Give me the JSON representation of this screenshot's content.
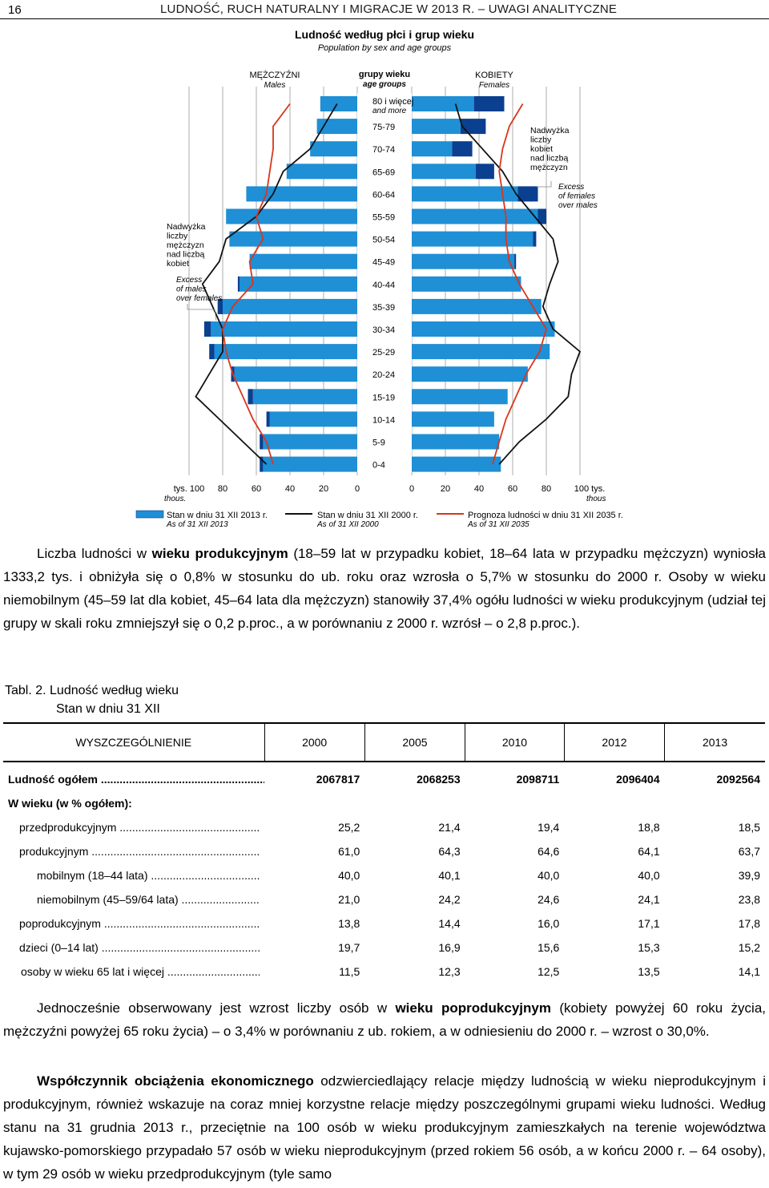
{
  "header": {
    "page_number": "16",
    "running_title": "LUDNOŚĆ, RUCH NATURALNY I MIGRACJE W 2013 R. – UWAGI ANALITYCZNE"
  },
  "chart_data": {
    "type": "population-pyramid",
    "title": "Ludność według płci i grup wieku",
    "subtitle": "Population by sex and age groups",
    "males_label": "MĘŻCZYŹNI",
    "males_label_en": "Males",
    "females_label": "KOBIETY",
    "females_label_en": "Females",
    "age_axis_title": "grupy wieku",
    "age_axis_title_en": "age groups",
    "age_groups": [
      "80 i więcej",
      "75-79",
      "70-74",
      "65-69",
      "60-64",
      "55-59",
      "50-54",
      "45-49",
      "40-44",
      "35-39",
      "30-34",
      "25-29",
      "20-24",
      "15-19",
      "10-14",
      "5-9",
      "0-4"
    ],
    "age_group_80_en": "and more",
    "x_ticks_left": [
      "tys. 100",
      "80",
      "60",
      "40",
      "20",
      "0"
    ],
    "x_ticks_right": [
      "0",
      "20",
      "40",
      "60",
      "80",
      "100 tys."
    ],
    "x_unit_en_left": "thous.",
    "x_unit_en_right": "thous",
    "xlim": [
      0,
      100
    ],
    "males_2013": [
      22,
      24,
      28,
      42,
      66,
      78,
      76,
      64,
      70,
      80,
      87,
      85,
      73,
      62,
      52,
      56,
      56
    ],
    "females_2013": [
      37,
      29,
      24,
      38,
      63,
      75,
      72,
      61,
      65,
      77,
      85,
      82,
      69,
      57,
      49,
      52,
      53
    ],
    "excess_males": [
      0,
      0,
      0,
      0,
      0,
      0,
      0,
      0,
      1,
      3,
      4,
      3,
      2,
      3,
      2,
      2,
      2
    ],
    "excess_females": [
      18,
      15,
      12,
      11,
      12,
      5,
      2,
      1,
      0,
      0,
      0,
      0,
      0,
      0,
      0,
      0,
      0
    ],
    "males_2000": [
      12,
      20,
      28,
      44,
      50,
      60,
      78,
      82,
      92,
      86,
      80,
      80,
      88,
      96,
      82,
      68,
      54
    ],
    "females_2000": [
      26,
      30,
      42,
      54,
      62,
      73,
      84,
      87,
      82,
      78,
      84,
      100,
      95,
      93,
      80,
      64,
      52
    ],
    "males_2035": [
      40,
      50,
      50,
      52,
      54,
      60,
      56,
      64,
      62,
      74,
      80,
      78,
      74,
      68,
      62,
      54,
      50
    ],
    "females_2035": [
      66,
      58,
      54,
      52,
      54,
      56,
      56,
      58,
      64,
      72,
      80,
      76,
      68,
      62,
      56,
      52,
      48
    ],
    "note_excess_males": [
      "Nadwyżka",
      "liczby",
      "mężczyzn",
      "nad liczbą",
      "kobiet"
    ],
    "note_excess_males_en": [
      "Excess",
      "of males",
      "over females"
    ],
    "note_excess_females": [
      "Nadwyżka",
      "liczby",
      "kobiet",
      "nad liczbą",
      "mężczyzn"
    ],
    "note_excess_females_en": [
      "Excess",
      "of females",
      "over males"
    ],
    "legend": [
      {
        "label": "Stan w dniu 31 XII 2013 r.",
        "label_en": "As of 31 XII 2013",
        "color": "#1f8fd6"
      },
      {
        "label": "Stan w dniu 31 XII 2000 r.",
        "label_en": "As of 31 XII 2000",
        "color": "#111111"
      },
      {
        "label": "Prognoza ludności w dniu 31 XII 2035 r.",
        "label_en": "As of 31 XII 2035",
        "color": "#d9361c"
      }
    ],
    "colors": {
      "bars": "#1f8fd6",
      "excess": "#0b3f8f",
      "line_2000": "#111111",
      "line_2035": "#d9361c"
    }
  },
  "paragraph1": {
    "p1": "Liczba ludności w ",
    "b1": "wieku produkcyjnym",
    "p2": " (18–59 lat w przypadku kobiet, 18–64 lata w przypadku mężczyzn) wyniosła 1333,2 tys. i obniżyła się o 0,8% w stosunku do ub. roku oraz wzrosła o 5,7% w stosunku do 2000 r. Osoby w wieku niemobilnym (45–59 lat dla kobiet, 45–64 lata dla mężczyzn) stanowiły 37,4% ogółu ludności w wieku produkcyjnym (udział tej grupy w skali roku zmniejszył się o 0,2 p.proc., a w porównaniu z 2000 r. wzrósł – o 2,8 p.proc.)."
  },
  "table": {
    "title": "Tabl. 2. Ludność według wieku",
    "subtitle": "Stan w dniu 31 XII",
    "header": [
      "WYSZCZEGÓLNIENIE",
      "2000",
      "2005",
      "2010",
      "2012",
      "2013"
    ],
    "total_label": "Ludność ogółem",
    "total_values": [
      "2067817",
      "2068253",
      "2098711",
      "2096404",
      "2092564"
    ],
    "section_label": "W wieku (w % ogółem):",
    "rows": [
      {
        "label": "przedprodukcyjnym",
        "values": [
          "25,2",
          "21,4",
          "19,4",
          "18,8",
          "18,5"
        ]
      },
      {
        "label": "produkcyjnym",
        "values": [
          "61,0",
          "64,3",
          "64,6",
          "64,1",
          "63,7"
        ]
      },
      {
        "label": "mobilnym (18–44 lata)",
        "values": [
          "40,0",
          "40,1",
          "40,0",
          "40,0",
          "39,9"
        ]
      },
      {
        "label": "niemobilnym (45–59/64 lata)",
        "values": [
          "21,0",
          "24,2",
          "24,6",
          "24,1",
          "23,8"
        ]
      },
      {
        "label": "poprodukcyjnym",
        "values": [
          "13,8",
          "14,4",
          "16,0",
          "17,1",
          "17,8"
        ]
      },
      {
        "label": "dzieci (0–14 lat)",
        "values": [
          "19,7",
          "16,9",
          "15,6",
          "15,3",
          "15,2"
        ]
      },
      {
        "label": "osoby w wieku 65 lat i więcej",
        "values": [
          "11,5",
          "12,3",
          "12,5",
          "13,5",
          "14,1"
        ]
      }
    ]
  },
  "paragraph2": {
    "p1": "Jednocześnie obserwowany jest wzrost liczby osób w ",
    "b1": "wieku poprodukcyjnym",
    "p2": " (kobiety powyżej 60 roku życia, mężczyźni powyżej 65 roku życia) – o 3,4% w porównaniu z ub. rokiem, a w odniesieniu do 2000 r. – wzrost o 30,0%."
  },
  "paragraph3": {
    "b1": "Współczynnik obciążenia ekonomicznego",
    "p1": " odzwierciedlający relacje między ludnością w wieku nieprodukcyjnym i produkcyjnym, również wskazuje na coraz mniej korzystne relacje między poszczególnymi grupami wieku ludności. Według stanu na 31 grudnia 2013 r., przeciętnie na 100 osób w wieku produkcyjnym zamieszkałych na terenie województwa kujawsko-pomorskiego przypadało 57 osób w wieku nieprodukcyjnym (przed rokiem 56 osób, a w końcu 2000 r. – 64 osoby), w tym 29 osób w wieku przedprodukcyjnym (tyle samo"
  }
}
